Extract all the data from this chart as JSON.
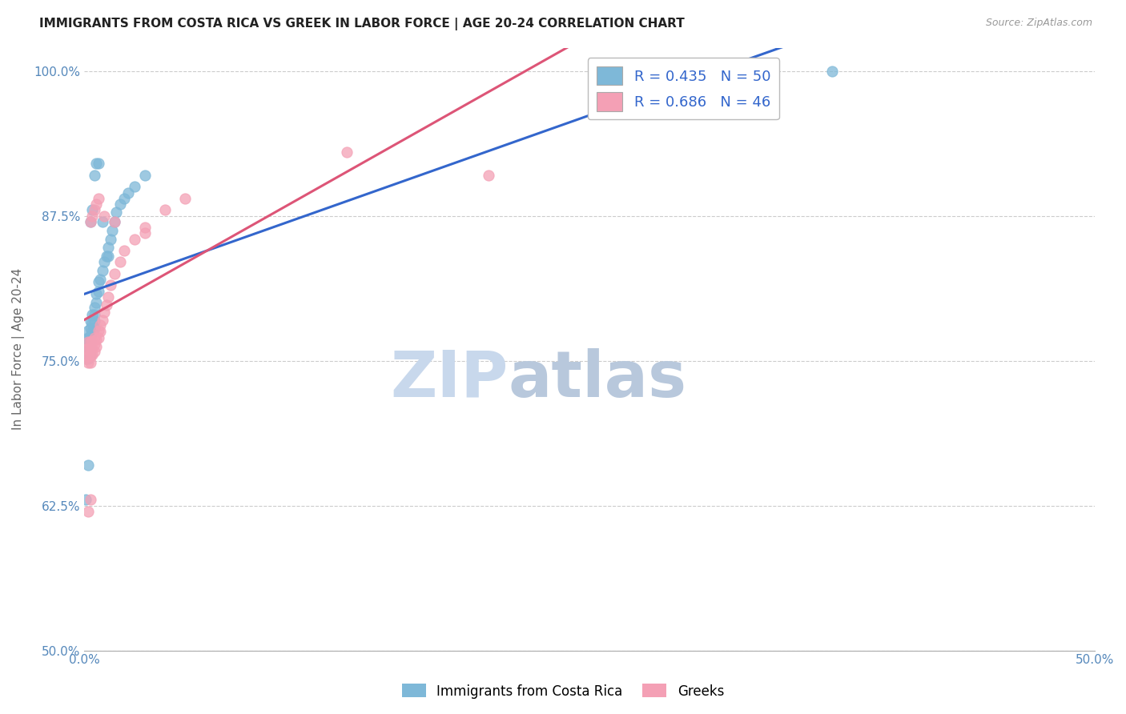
{
  "title": "IMMIGRANTS FROM COSTA RICA VS GREEK IN LABOR FORCE | AGE 20-24 CORRELATION CHART",
  "source": "Source: ZipAtlas.com",
  "ylabel": "In Labor Force | Age 20-24",
  "xlim": [
    0.0,
    0.5
  ],
  "ylim": [
    0.5,
    1.02
  ],
  "xticks": [
    0.0,
    0.1,
    0.2,
    0.3,
    0.4,
    0.5
  ],
  "xticklabels": [
    "0.0%",
    "",
    "",
    "",
    "",
    "50.0%"
  ],
  "yticks": [
    0.5,
    0.625,
    0.75,
    0.875,
    1.0
  ],
  "yticklabels": [
    "50.0%",
    "62.5%",
    "75.0%",
    "87.5%",
    "100.0%"
  ],
  "blue_R": 0.435,
  "blue_N": 50,
  "pink_R": 0.686,
  "pink_N": 46,
  "blue_color": "#7eb8d8",
  "pink_color": "#f4a0b5",
  "blue_line_color": "#3366cc",
  "pink_line_color": "#dd5577",
  "legend_color": "#3366cc",
  "blue_x": [
    0.001,
    0.001,
    0.001,
    0.001,
    0.002,
    0.002,
    0.002,
    0.002,
    0.002,
    0.003,
    0.003,
    0.003,
    0.003,
    0.003,
    0.003,
    0.004,
    0.004,
    0.004,
    0.005,
    0.005,
    0.005,
    0.005,
    0.006,
    0.006,
    0.007,
    0.007,
    0.008,
    0.009,
    0.01,
    0.011,
    0.012,
    0.013,
    0.014,
    0.015,
    0.016,
    0.018,
    0.02,
    0.022,
    0.025,
    0.03,
    0.003,
    0.004,
    0.005,
    0.006,
    0.007,
    0.009,
    0.012,
    0.001,
    0.002,
    0.37
  ],
  "blue_y": [
    0.752,
    0.756,
    0.762,
    0.768,
    0.752,
    0.758,
    0.764,
    0.77,
    0.776,
    0.755,
    0.76,
    0.766,
    0.772,
    0.778,
    0.784,
    0.775,
    0.783,
    0.79,
    0.778,
    0.784,
    0.79,
    0.796,
    0.8,
    0.808,
    0.81,
    0.818,
    0.82,
    0.828,
    0.835,
    0.84,
    0.848,
    0.855,
    0.862,
    0.87,
    0.878,
    0.885,
    0.89,
    0.895,
    0.9,
    0.91,
    0.87,
    0.88,
    0.91,
    0.92,
    0.92,
    0.87,
    0.84,
    0.63,
    0.66,
    1.0
  ],
  "pink_x": [
    0.001,
    0.001,
    0.002,
    0.002,
    0.002,
    0.002,
    0.003,
    0.003,
    0.003,
    0.003,
    0.004,
    0.004,
    0.004,
    0.005,
    0.005,
    0.005,
    0.006,
    0.006,
    0.007,
    0.007,
    0.008,
    0.008,
    0.009,
    0.01,
    0.011,
    0.012,
    0.013,
    0.015,
    0.018,
    0.02,
    0.025,
    0.03,
    0.04,
    0.05,
    0.003,
    0.004,
    0.005,
    0.006,
    0.007,
    0.01,
    0.015,
    0.03,
    0.002,
    0.003,
    0.2,
    0.13
  ],
  "pink_y": [
    0.752,
    0.76,
    0.748,
    0.754,
    0.76,
    0.766,
    0.748,
    0.754,
    0.76,
    0.766,
    0.755,
    0.761,
    0.767,
    0.758,
    0.764,
    0.77,
    0.762,
    0.768,
    0.77,
    0.776,
    0.775,
    0.781,
    0.785,
    0.792,
    0.798,
    0.805,
    0.815,
    0.825,
    0.835,
    0.845,
    0.855,
    0.865,
    0.88,
    0.89,
    0.87,
    0.875,
    0.88,
    0.885,
    0.89,
    0.875,
    0.87,
    0.86,
    0.62,
    0.63,
    0.91,
    0.93
  ],
  "grid_color": "#cccccc",
  "background_color": "#ffffff",
  "watermark_zip_color": "#c8d8ec",
  "watermark_atlas_color": "#b8c8dc"
}
